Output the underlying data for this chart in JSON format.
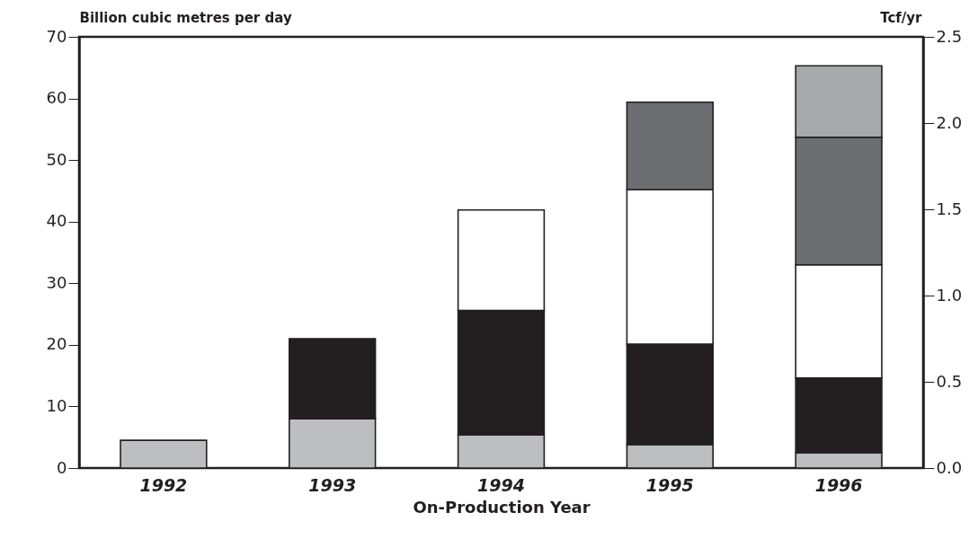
{
  "chart_data": {
    "type": "bar",
    "stacked": true,
    "xlabel": "On-Production Year",
    "ylabel": "Billion cubic metres per day",
    "y2label": "Tcf/yr",
    "categories": [
      "1992",
      "1993",
      "1994",
      "1995",
      "1996"
    ],
    "series": [
      {
        "color": "#bcbec0",
        "values": [
          4.5,
          8.0,
          5.4,
          3.8,
          2.5
        ]
      },
      {
        "color": "#231f20",
        "values": [
          null,
          13.0,
          20.2,
          16.3,
          12.1
        ]
      },
      {
        "color": "#ffffff",
        "values": [
          null,
          null,
          16.3,
          25.1,
          18.4
        ]
      },
      {
        "color": "#6d6e71",
        "values": [
          null,
          null,
          null,
          14.2,
          20.7
        ]
      },
      {
        "color": "#a7a9ac",
        "values": [
          null,
          null,
          null,
          null,
          11.6
        ]
      }
    ],
    "ylim": [
      0,
      70
    ],
    "yticks": [
      0,
      10,
      20,
      30,
      40,
      50,
      60,
      70
    ],
    "y2lim": [
      0,
      2.5
    ],
    "y2ticks": [
      {
        "value": 0,
        "label": "0.0"
      },
      {
        "value": 0.5,
        "label": "0.5"
      },
      {
        "value": 1,
        "label": "1.0"
      },
      {
        "value": 1.5,
        "label": "1.5"
      },
      {
        "value": 2,
        "label": "2.0"
      },
      {
        "value": 2.5,
        "label": "2.5"
      }
    ]
  }
}
